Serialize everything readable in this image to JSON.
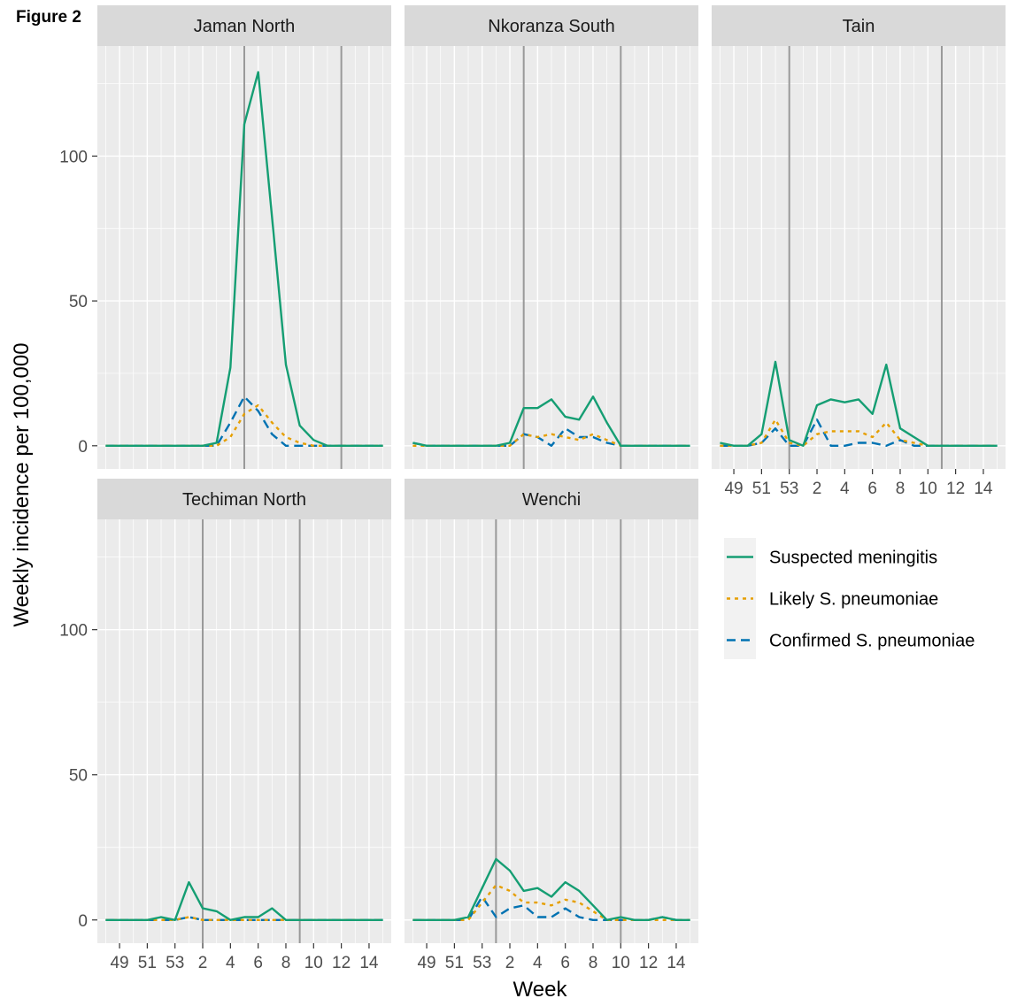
{
  "figure_label": "Figure 2",
  "chart_data": {
    "type": "line",
    "xlabel": "Week",
    "ylabel": "Weekly incidence per 100,000",
    "ylim": [
      -8,
      138
    ],
    "yticks": [
      0,
      50,
      100
    ],
    "x_weeks": [
      48,
      49,
      50,
      51,
      52,
      53,
      1,
      2,
      3,
      4,
      5,
      6,
      7,
      8,
      9,
      10,
      11,
      12,
      13,
      14,
      15
    ],
    "xtick_labels": [
      "49",
      "51",
      "53",
      "2",
      "4",
      "6",
      "8",
      "10",
      "12",
      "14"
    ],
    "grid": true,
    "legend_position": "right",
    "series_names": [
      "Suspected meningitis",
      "Likely S. pneumoniae",
      "Confirmed S. pneumoniae"
    ],
    "colors": {
      "suspected": "#159e73",
      "likely": "#e69f00",
      "confirmed": "#0072b2"
    },
    "panels": [
      {
        "title": "Jaman North",
        "vlines": [
          5,
          12
        ],
        "suspected": [
          0,
          0,
          0,
          0,
          0,
          0,
          0,
          0,
          1,
          27,
          111,
          129,
          79,
          28,
          7,
          2,
          0,
          0,
          0,
          0,
          0
        ],
        "likely": [
          0,
          0,
          0,
          0,
          0,
          0,
          0,
          0,
          0,
          3,
          11,
          14,
          8,
          3,
          1,
          0,
          0,
          0,
          0,
          0,
          0
        ],
        "confirmed": [
          0,
          0,
          0,
          0,
          0,
          0,
          0,
          0,
          0,
          8,
          17,
          12,
          4,
          0,
          0,
          0,
          0,
          0,
          0,
          0,
          0
        ]
      },
      {
        "title": "Nkoranza South",
        "vlines": [
          3,
          10
        ],
        "suspected": [
          1,
          0,
          0,
          0,
          0,
          0,
          0,
          1,
          13,
          13,
          16,
          10,
          9,
          17,
          8,
          0,
          0,
          0,
          0,
          0,
          0
        ],
        "likely": [
          0,
          0,
          0,
          0,
          0,
          0,
          0,
          0,
          4,
          3,
          4,
          3,
          2,
          4,
          2,
          0,
          0,
          0,
          0,
          0,
          0
        ],
        "confirmed": [
          1,
          0,
          0,
          0,
          0,
          0,
          0,
          0,
          4,
          3,
          0,
          6,
          3,
          3,
          1,
          0,
          0,
          0,
          0,
          0,
          0
        ]
      },
      {
        "title": "Tain",
        "vlines": [
          53,
          11
        ],
        "suspected": [
          1,
          0,
          0,
          4,
          29,
          2,
          0,
          14,
          16,
          15,
          16,
          11,
          28,
          6,
          3,
          0,
          0,
          0,
          0,
          0,
          0
        ],
        "likely": [
          0,
          0,
          0,
          1,
          9,
          1,
          0,
          4,
          5,
          5,
          5,
          3,
          8,
          2,
          1,
          0,
          0,
          0,
          0,
          0,
          0
        ],
        "confirmed": [
          0,
          0,
          0,
          1,
          6,
          0,
          0,
          9,
          0,
          0,
          1,
          1,
          0,
          2,
          0,
          0,
          0,
          0,
          0,
          0,
          0
        ]
      },
      {
        "title": "Techiman North",
        "vlines": [
          2,
          9
        ],
        "suspected": [
          0,
          0,
          0,
          0,
          1,
          0,
          13,
          4,
          3,
          0,
          1,
          1,
          4,
          0,
          0,
          0,
          0,
          0,
          0,
          0,
          0
        ],
        "likely": [
          0,
          0,
          0,
          0,
          0,
          0,
          1,
          0,
          0,
          0,
          0,
          0,
          0,
          0,
          0,
          0,
          0,
          0,
          0,
          0,
          0
        ],
        "confirmed": [
          0,
          0,
          0,
          0,
          0,
          0,
          1,
          0,
          0,
          0,
          0,
          0,
          0,
          0,
          0,
          0,
          0,
          0,
          0,
          0,
          0
        ]
      },
      {
        "title": "Wenchi",
        "vlines": [
          1,
          10
        ],
        "suspected": [
          0,
          0,
          0,
          0,
          1,
          11,
          21,
          17,
          10,
          11,
          8,
          13,
          10,
          5,
          0,
          1,
          0,
          0,
          1,
          0,
          0
        ],
        "likely": [
          0,
          0,
          0,
          0,
          0,
          6,
          12,
          10,
          6,
          6,
          5,
          7,
          6,
          3,
          0,
          0,
          0,
          0,
          0,
          0,
          0
        ],
        "confirmed": [
          0,
          0,
          0,
          0,
          0,
          8,
          1,
          4,
          5,
          1,
          1,
          4,
          1,
          0,
          0,
          0,
          0,
          0,
          1,
          0,
          0
        ]
      }
    ]
  }
}
